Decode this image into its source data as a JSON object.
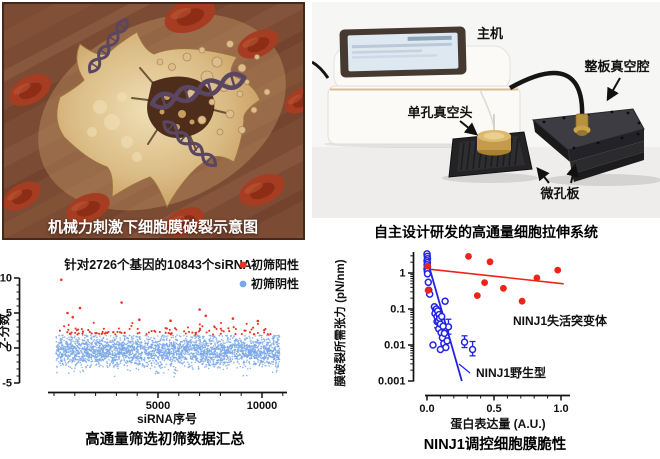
{
  "panels": {
    "illustration": {
      "caption": "机械力刺激下细胞膜破裂示意图"
    },
    "device": {
      "caption": "自主设计研发的高通量细胞拉伸系统",
      "labels": {
        "main_unit": "主机",
        "plate_vacuum_chamber": "整板真空腔",
        "single_well_vacuum_head": "单孔真空头",
        "microwell_plate": "微孔板"
      }
    },
    "screening_chart": {
      "caption": "高通量筛选初筛数据汇总"
    },
    "tension_chart": {
      "caption": "NINJ1调控细胞膜脆性"
    }
  },
  "chart_data": [
    {
      "type": "scatter",
      "title": "针对2726个基因的10843个siRNA",
      "xlabel": "siRNA序号",
      "ylabel": "Z-分数",
      "xlim": [
        0,
        11000
      ],
      "ylim": [
        -5,
        10
      ],
      "xticks": [
        {
          "v": 5000,
          "label": "5000"
        },
        {
          "v": 10000,
          "label": "10000"
        }
      ],
      "yticks": [
        {
          "v": -5,
          "label": "-5"
        },
        {
          "v": 0,
          "label": "0"
        },
        {
          "v": 5,
          "label": "5"
        },
        {
          "v": 10,
          "label": "10"
        }
      ],
      "minor_x_step": 1000,
      "minor_y_step": 1,
      "legend": [
        {
          "label": "初筛阳性",
          "color": "#e63524"
        },
        {
          "label": "初筛阴性",
          "color": "#79a7e8"
        }
      ],
      "series": [
        {
          "name": "初筛阴性",
          "color": "#79a7e8",
          "n_total": 10728,
          "band": {
            "mean": -0.42,
            "sd": 1.12,
            "clip_low": -4.7,
            "clip_high": 1.85
          }
        },
        {
          "name": "初筛阳性",
          "color": "#e63524",
          "n_total": 115,
          "band": {
            "min": 1.9,
            "tail_sd": 0.62,
            "max": 4.4
          },
          "outliers": [
            [
              350,
              9.75
            ],
            [
              1250,
              5.7
            ],
            [
              650,
              5.0
            ],
            [
              3250,
              6.5
            ],
            [
              7000,
              5.5
            ],
            [
              7300,
              4.6
            ],
            [
              900,
              4.4
            ],
            [
              8600,
              4.2
            ],
            [
              4100,
              4.05
            ],
            [
              9800,
              3.85
            ],
            [
              5600,
              3.9
            ]
          ]
        }
      ],
      "render": {
        "seed": 7,
        "n_negative": 3000,
        "n_positive": 110
      }
    },
    {
      "type": "scatter",
      "xlabel": "蛋白表达量 (A.U.)",
      "ylabel": "膜破裂所需张力 (pN/nm)",
      "yscale": "log",
      "xlim": [
        -0.03,
        1.07
      ],
      "ylim": [
        0.001,
        3.7
      ],
      "xticks": [
        {
          "v": 0,
          "label": "0.0"
        },
        {
          "v": 0.5,
          "label": "0.5"
        },
        {
          "v": 1.0,
          "label": "1.0"
        }
      ],
      "yticks": [
        {
          "v": 1,
          "label": "1"
        },
        {
          "v": 0.1,
          "label": "0.1"
        },
        {
          "v": 0.01,
          "label": "0.01"
        },
        {
          "v": 0.001,
          "label": "0.001"
        }
      ],
      "series": [
        {
          "name": "NINJ1失活突变体",
          "color": "#ee2418",
          "marker": "filled-circle",
          "points": [
            [
              0.005,
              1.55
            ],
            [
              0.008,
              0.33
            ],
            [
              0.31,
              2.9
            ],
            [
              0.47,
              2.05
            ],
            [
              0.375,
              0.235
            ],
            [
              0.43,
              0.54
            ],
            [
              0.57,
              0.375
            ],
            [
              0.71,
              0.165
            ],
            [
              0.82,
              0.73
            ],
            [
              0.975,
              1.2
            ]
          ],
          "trend_line": [
            [
              0.0,
              1.3
            ],
            [
              1.02,
              0.5
            ]
          ]
        },
        {
          "name": "NINJ1野生型",
          "color": "#2222e6",
          "marker": "open-circle",
          "points": [
            [
              0.0,
              3.4
            ],
            [
              0.002,
              2.9
            ],
            [
              0.004,
              2.5
            ],
            [
              0.0,
              2.2
            ],
            [
              0.003,
              1.95
            ],
            [
              0.001,
              1.7
            ],
            [
              0.004,
              1.5
            ],
            [
              0.0,
              1.3
            ],
            [
              0.002,
              1.12
            ],
            [
              0.004,
              0.95
            ],
            [
              0.01,
              0.55
            ],
            [
              0.013,
              0.33
            ],
            [
              0.02,
              0.26
            ],
            [
              0.055,
              0.115
            ],
            [
              0.065,
              0.095
            ],
            [
              0.06,
              0.075
            ],
            [
              0.07,
              0.1
            ],
            [
              0.075,
              0.061
            ],
            [
              0.08,
              0.088
            ],
            [
              0.085,
              0.047
            ],
            [
              0.09,
              0.07
            ],
            [
              0.088,
              0.028
            ],
            [
              0.095,
              0.055
            ],
            [
              0.1,
              0.038
            ],
            [
              0.105,
              0.022
            ],
            [
              0.11,
              0.062
            ],
            [
              0.115,
              0.016
            ],
            [
              0.12,
              0.033
            ],
            [
              0.125,
              0.011
            ],
            [
              0.13,
              0.021
            ],
            [
              0.135,
              0.165
            ],
            [
              0.14,
              0.0085
            ],
            [
              0.15,
              0.013
            ],
            [
              0.045,
              0.01
            ],
            [
              0.1,
              0.0075
            ]
          ],
          "error_points": [
            {
              "x": 0.075,
              "y": 0.045,
              "lo": 0.03,
              "hi": 0.068
            },
            {
              "x": 0.16,
              "y": 0.032,
              "lo": 0.02,
              "hi": 0.052
            },
            {
              "x": 0.28,
              "y": 0.012,
              "lo": 0.0085,
              "hi": 0.018
            },
            {
              "x": 0.34,
              "y": 0.0075,
              "lo": 0.005,
              "hi": 0.0125
            }
          ],
          "trend_line": [
            [
              -0.005,
              2.8
            ],
            [
              0.26,
              0.001
            ]
          ]
        }
      ]
    }
  ]
}
